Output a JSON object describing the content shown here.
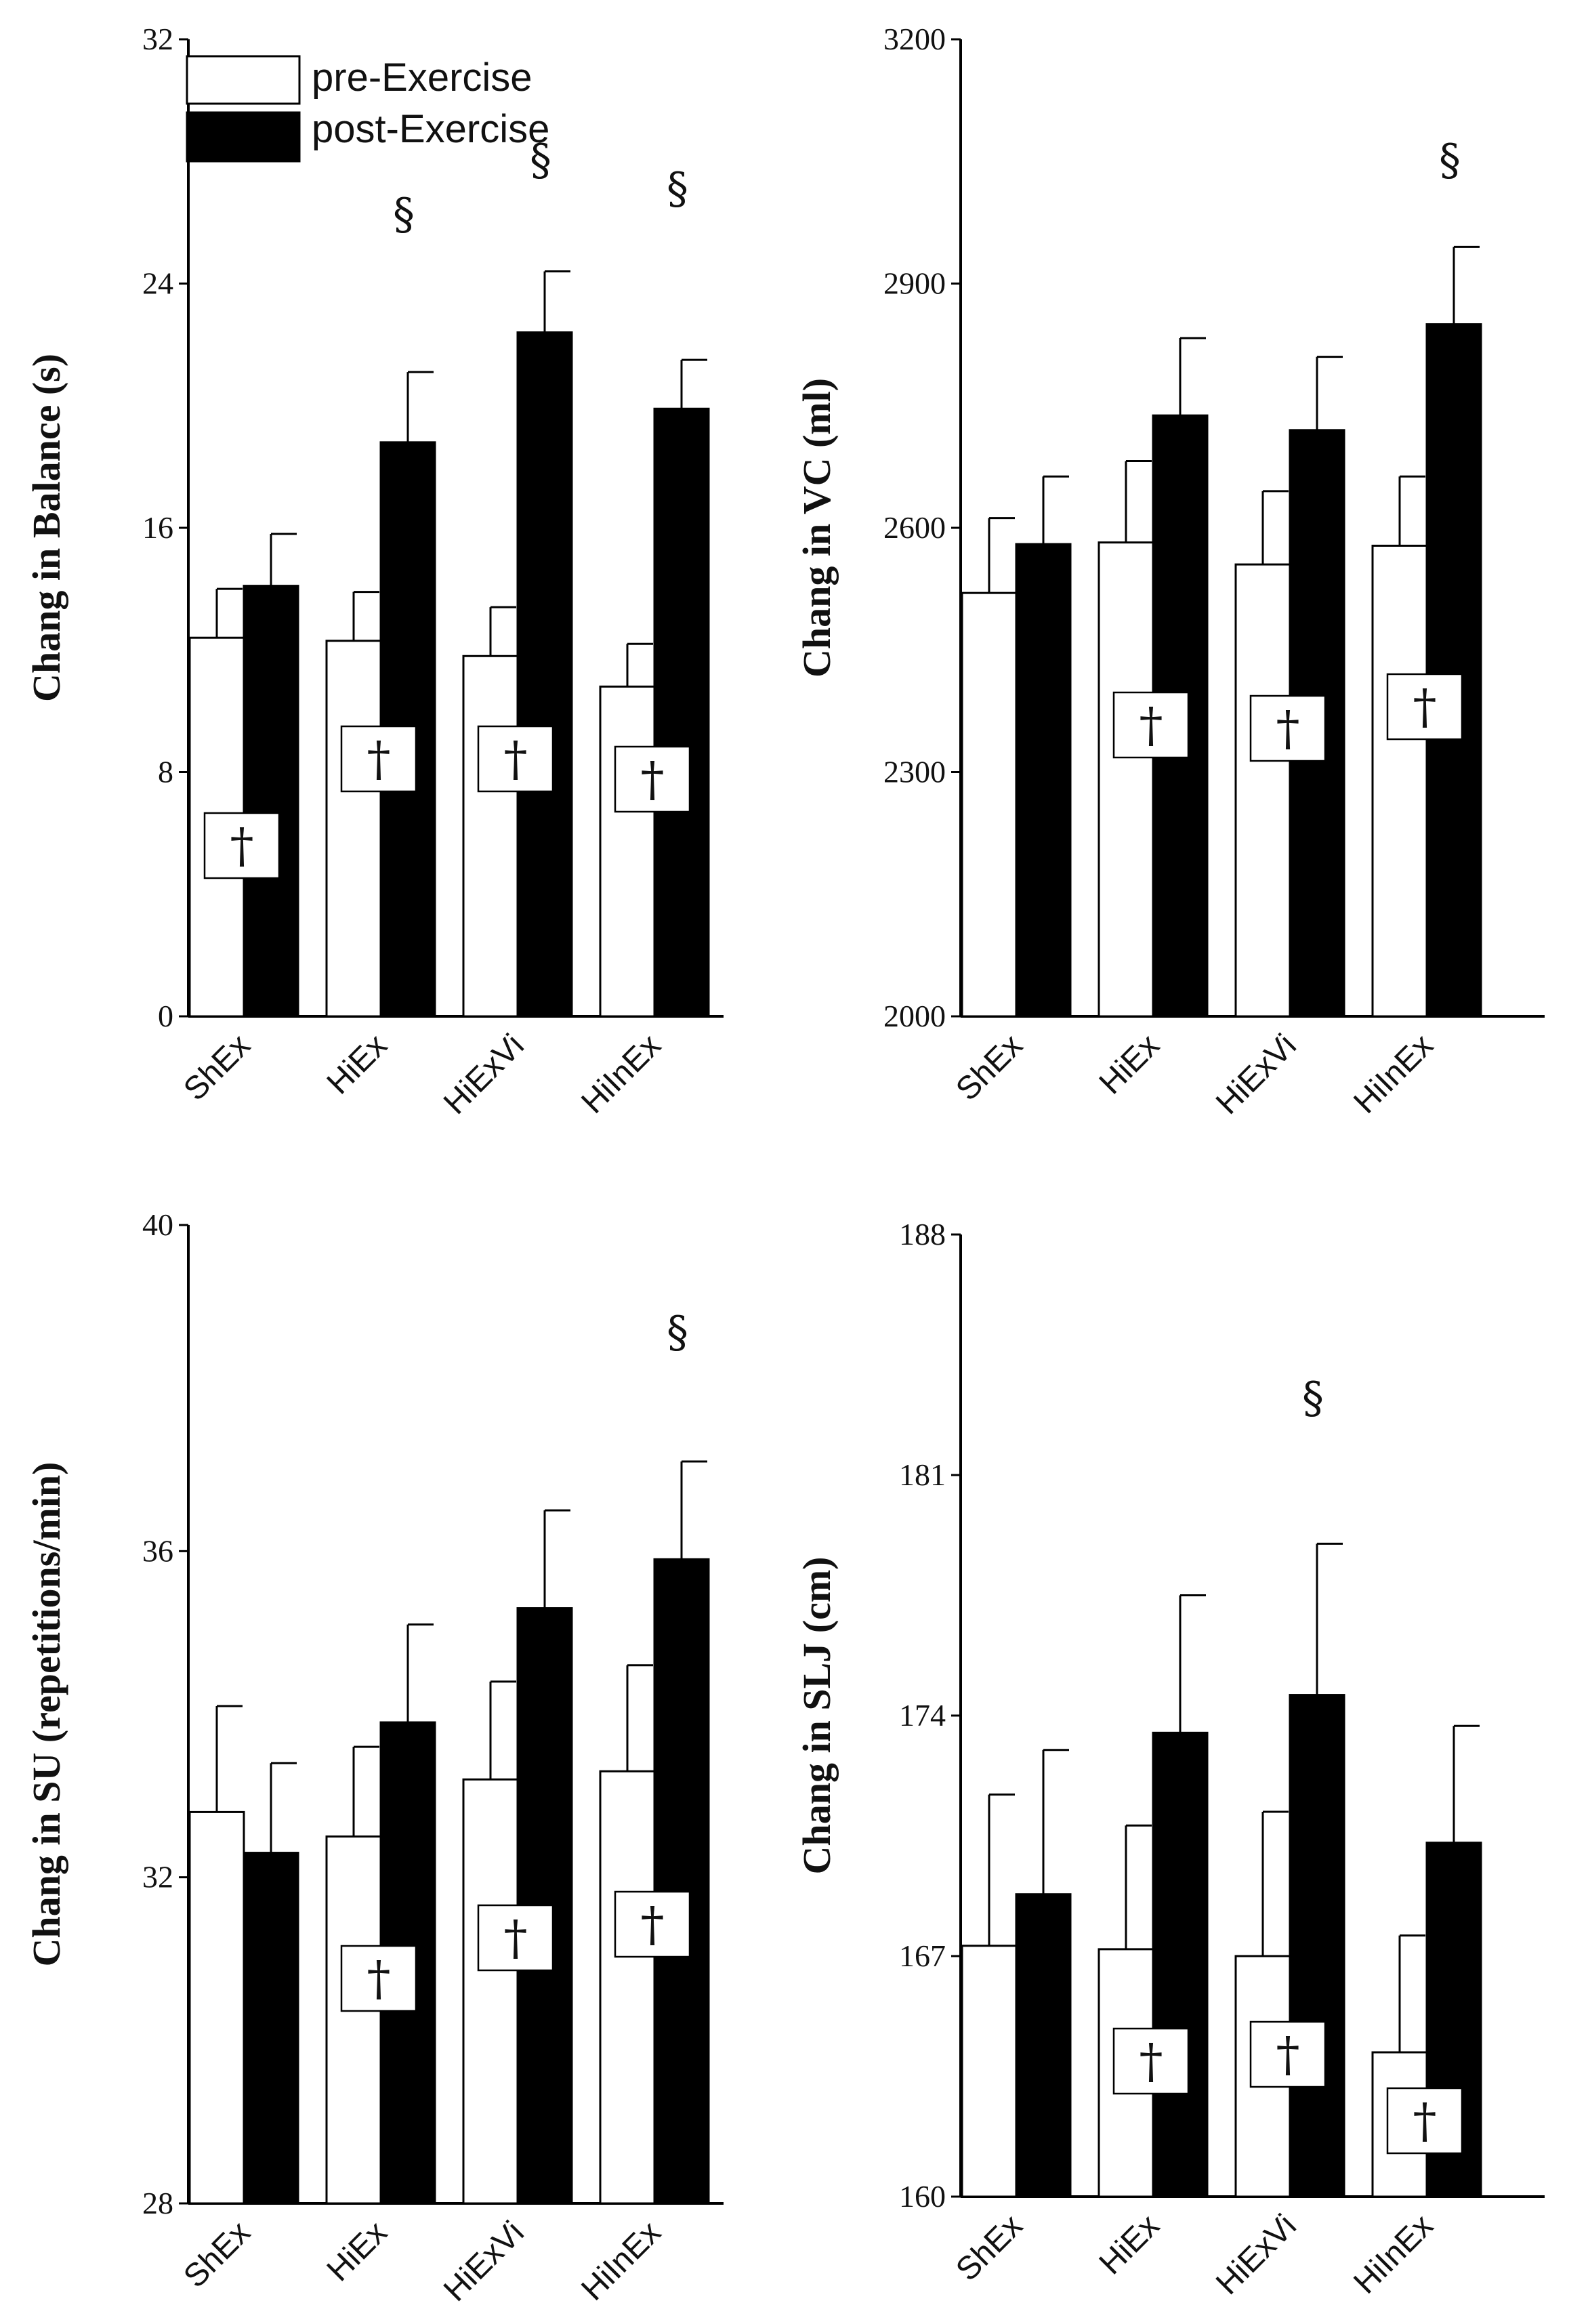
{
  "legend": {
    "items": [
      {
        "label": "pre-Exercise",
        "color": "#ffffff"
      },
      {
        "label": "post-Exercise",
        "color": "#000000"
      }
    ],
    "placement": "top-left"
  },
  "markers": {
    "section": "§",
    "dagger": "†"
  },
  "colors": {
    "pre": "#ffffff",
    "post": "#000000",
    "axis": "#000000"
  },
  "chart_data": [
    {
      "id": "balance",
      "type": "bar",
      "ylabel": "Chang in Balance (s)",
      "xlabel": "",
      "categories": [
        "ShEx",
        "HiEx",
        "HiExVi",
        "HiInEx"
      ],
      "ylim": [
        0,
        32
      ],
      "yticks": [
        0,
        8,
        16,
        24,
        32
      ],
      "yticklabels": [
        "0",
        "8",
        "16",
        "24",
        "32"
      ],
      "series": [
        {
          "name": "pre-Exercise",
          "values": [
            12.4,
            12.3,
            11.8,
            10.8
          ],
          "errors": [
            1.6,
            1.6,
            1.6,
            1.4
          ]
        },
        {
          "name": "post-Exercise",
          "values": [
            14.1,
            18.8,
            22.4,
            19.9
          ],
          "errors": [
            1.7,
            2.3,
            2.0,
            1.6
          ]
        }
      ],
      "section_marks": [
        false,
        true,
        true,
        true
      ],
      "dagger_marks": [
        true,
        true,
        true,
        true
      ]
    },
    {
      "id": "vc",
      "type": "bar",
      "ylabel": "Chang in VC (ml)",
      "xlabel": "",
      "categories": [
        "ShEx",
        "HiEx",
        "HiExVi",
        "HiInEx"
      ],
      "ylim": [
        2000,
        3200
      ],
      "yticks": [
        2000,
        2300,
        2600,
        2900,
        3200
      ],
      "yticklabels": [
        "2000",
        "2300",
        "2600",
        "2900",
        "3200"
      ],
      "series": [
        {
          "name": "pre-Exercise",
          "values": [
            2520,
            2582,
            2555,
            2578
          ],
          "errors": [
            92,
            100,
            90,
            85
          ]
        },
        {
          "name": "post-Exercise",
          "values": [
            2580,
            2738,
            2720,
            2850
          ],
          "errors": [
            83,
            95,
            90,
            95
          ]
        }
      ],
      "section_marks": [
        false,
        false,
        false,
        true
      ],
      "dagger_marks": [
        false,
        true,
        true,
        true
      ]
    },
    {
      "id": "su",
      "type": "bar",
      "ylabel": "Chang in SU (repetitions/min)",
      "xlabel": "",
      "categories": [
        "ShEx",
        "HiEx",
        "HiExVi",
        "HiInEx"
      ],
      "ylim": [
        28,
        40
      ],
      "yticks": [
        28,
        32,
        36,
        40
      ],
      "yticklabels": [
        "28",
        "32",
        "36",
        "40"
      ],
      "series": [
        {
          "name": "pre-Exercise",
          "values": [
            32.8,
            32.5,
            33.2,
            33.3
          ],
          "errors": [
            1.3,
            1.1,
            1.2,
            1.3
          ]
        },
        {
          "name": "post-Exercise",
          "values": [
            32.3,
            33.9,
            35.3,
            35.9
          ],
          "errors": [
            1.1,
            1.2,
            1.2,
            1.2
          ]
        }
      ],
      "section_marks": [
        false,
        false,
        false,
        true
      ],
      "dagger_marks": [
        false,
        true,
        true,
        true
      ]
    },
    {
      "id": "slj",
      "type": "bar",
      "ylabel": "Chang in SLJ (cm)",
      "xlabel": "",
      "categories": [
        "ShEx",
        "HiEx",
        "HiExVi",
        "HiInEx"
      ],
      "ylim": [
        160,
        188
      ],
      "yticks": [
        160,
        167,
        174,
        181,
        188
      ],
      "yticklabels": [
        "160",
        "167",
        "174",
        "181",
        "188"
      ],
      "series": [
        {
          "name": "pre-Exercise",
          "values": [
            167.3,
            167.2,
            167.0,
            164.2
          ],
          "errors": [
            4.4,
            3.6,
            4.2,
            3.4
          ]
        },
        {
          "name": "post-Exercise",
          "values": [
            168.8,
            173.5,
            174.6,
            170.3
          ],
          "errors": [
            4.2,
            4.0,
            4.4,
            3.4
          ]
        }
      ],
      "section_marks": [
        false,
        false,
        true,
        false
      ],
      "dagger_marks": [
        false,
        true,
        true,
        true
      ]
    }
  ]
}
